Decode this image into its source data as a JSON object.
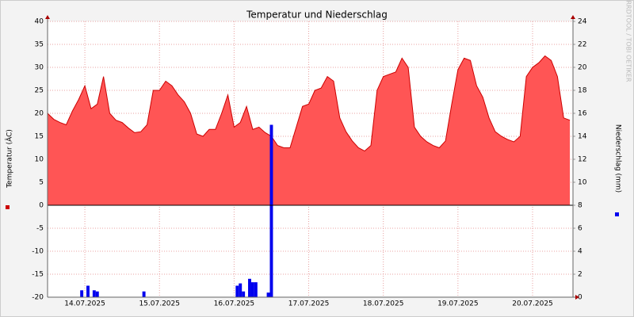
{
  "chart_data": {
    "type": "area",
    "title": "Temperatur und Niederschlag",
    "y_label": "Temperatur (ÂC)",
    "y2_label": "Niederschlag (mm)",
    "watermark": "RRDTOOL / TOBI OETIKER",
    "xlim": [
      0,
      169
    ],
    "xticks": [
      {
        "value": 12,
        "label": "14.07.2025"
      },
      {
        "value": 36,
        "label": "15.07.2025"
      },
      {
        "value": 60,
        "label": "16.07.2025"
      },
      {
        "value": 84,
        "label": "17.07.2025"
      },
      {
        "value": 108,
        "label": "18.07.2025"
      },
      {
        "value": 132,
        "label": "19.07.2025"
      },
      {
        "value": 156,
        "label": "20.07.2025"
      }
    ],
    "ylim": [
      -20,
      40
    ],
    "yticks": [
      -20,
      -15,
      -10,
      -5,
      0,
      5,
      10,
      15,
      20,
      25,
      30,
      35,
      40
    ],
    "y2lim": [
      0,
      24
    ],
    "y2ticks": [
      0,
      2,
      4,
      6,
      8,
      10,
      12,
      14,
      16,
      18,
      20,
      22,
      24
    ],
    "grid": true,
    "series": [
      {
        "type": "area",
        "color": "#ff5555",
        "line_color": "#cc0000",
        "x": [
          0,
          2,
          4,
          6,
          8,
          10,
          12,
          14,
          16,
          18,
          20,
          22,
          24,
          26,
          28,
          30,
          32,
          34,
          36,
          38,
          40,
          42,
          44,
          46,
          48,
          50,
          52,
          54,
          56,
          58,
          60,
          62,
          64,
          66,
          68,
          70,
          72,
          74,
          76,
          78,
          80,
          82,
          84,
          86,
          88,
          90,
          92,
          94,
          96,
          98,
          100,
          102,
          104,
          106,
          108,
          110,
          112,
          114,
          116,
          118,
          120,
          122,
          124,
          126,
          128,
          130,
          132,
          134,
          136,
          138,
          140,
          142,
          144,
          146,
          148,
          150,
          152,
          154,
          156,
          158,
          160,
          162,
          164,
          166,
          168
        ],
        "values": [
          20,
          18.7,
          18,
          17.5,
          20.5,
          23,
          26,
          21,
          22,
          28,
          20,
          18.5,
          18,
          16.8,
          15.8,
          16,
          17.5,
          25,
          25,
          27,
          26,
          24,
          22.5,
          20,
          15.5,
          15,
          16.5,
          16.5,
          20,
          24,
          17,
          18,
          21.5,
          16.5,
          17,
          15.8,
          15,
          13,
          12.5,
          12.5,
          17,
          21.5,
          22,
          25,
          25.5,
          28,
          27,
          19,
          16,
          14,
          12.5,
          11.8,
          13,
          25,
          28,
          28.5,
          29,
          32,
          30,
          17,
          15,
          13.8,
          13,
          12.5,
          14,
          22,
          29.5,
          32,
          31.5,
          26,
          23.5,
          19,
          16,
          15,
          14.3,
          13.8,
          15,
          28,
          30,
          31,
          32.5,
          31.5,
          28,
          19,
          18.5
        ]
      },
      {
        "type": "bar",
        "axis": "y2",
        "color": "#0000ee",
        "x": [
          11,
          13,
          15,
          16,
          31,
          61,
          62,
          63,
          65,
          66,
          67,
          71,
          72
        ],
        "values": [
          0.6,
          1.0,
          0.6,
          0.5,
          0.5,
          1.0,
          1.2,
          0.5,
          1.6,
          1.3,
          1.3,
          0.4,
          15
        ]
      }
    ]
  }
}
